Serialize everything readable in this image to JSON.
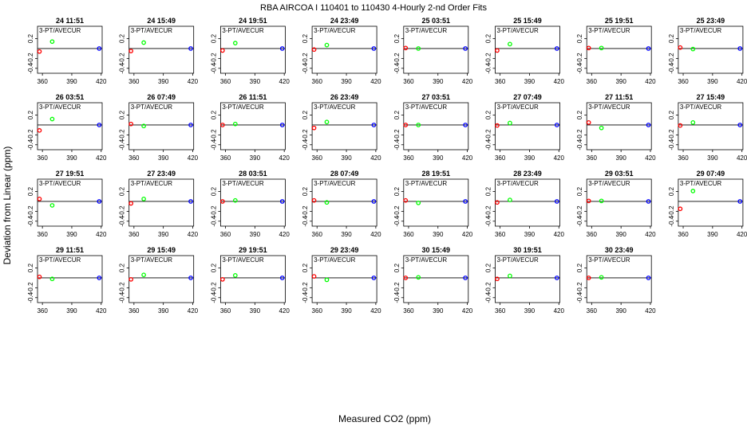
{
  "title": "RBA   AIRCOA I   110401 to 110430   4-Hourly 2-nd Order Fits",
  "xlabel": "Measured CO2 (ppm)",
  "ylabel": "Deviation from Linear (ppm)",
  "colors": {
    "low": "#ff0000",
    "mid": "#00ff00",
    "high": "#0000ff",
    "axis": "#000000"
  },
  "chart_data": {
    "type": "scatter",
    "title": "RBA   AIRCOA I   110401 to 110430   4-Hourly 2-nd Order Fits",
    "xlabel": "Measured CO2 (ppm)",
    "ylabel": "Deviation from Linear (ppm)",
    "xlim": [
      355,
      421
    ],
    "ylim": [
      -0.5,
      0.45
    ],
    "xticks": [
      360,
      390,
      420
    ],
    "yticks": [
      -0.4,
      -0.2,
      0.2
    ],
    "ytick_labels": [
      "-0.4",
      "-0.2",
      "0.2"
    ],
    "xtick_labels": [
      "360",
      "390",
      "420"
    ],
    "grid": false,
    "panels": [
      {
        "label": "24 11:51",
        "subtitle": "3-PT/AVECUR",
        "x": [
          357,
          370,
          418
        ],
        "y": [
          -0.06,
          0.14,
          0.0
        ]
      },
      {
        "label": "24 15:49",
        "subtitle": "3-PT/AVECUR",
        "x": [
          357,
          370,
          418
        ],
        "y": [
          -0.05,
          0.12,
          0.0
        ]
      },
      {
        "label": "24 19:51",
        "subtitle": "3-PT/AVECUR",
        "x": [
          357,
          370,
          418
        ],
        "y": [
          -0.04,
          0.11,
          0.0
        ]
      },
      {
        "label": "24 23:49",
        "subtitle": "3-PT/AVECUR",
        "x": [
          357,
          370,
          418
        ],
        "y": [
          -0.02,
          0.07,
          0.0
        ]
      },
      {
        "label": "25 03:51",
        "subtitle": "3-PT/AVECUR",
        "x": [
          357,
          370,
          418
        ],
        "y": [
          0.01,
          0.0,
          0.0
        ]
      },
      {
        "label": "25 15:49",
        "subtitle": "3-PT/AVECUR",
        "x": [
          357,
          370,
          418
        ],
        "y": [
          -0.04,
          0.09,
          0.0
        ]
      },
      {
        "label": "25 19:51",
        "subtitle": "3-PT/AVECUR",
        "x": [
          357,
          370,
          418
        ],
        "y": [
          0.01,
          0.01,
          0.0
        ]
      },
      {
        "label": "25 23:49",
        "subtitle": "3-PT/AVECUR",
        "x": [
          357,
          370,
          418
        ],
        "y": [
          0.02,
          -0.01,
          0.0
        ]
      },
      {
        "label": "26 03:51",
        "subtitle": "3-PT/AVECUR",
        "x": [
          357,
          370,
          418
        ],
        "y": [
          -0.11,
          0.12,
          0.0
        ]
      },
      {
        "label": "26 07:49",
        "subtitle": "3-PT/AVECUR",
        "x": [
          357,
          370,
          418
        ],
        "y": [
          0.02,
          -0.02,
          0.0
        ]
      },
      {
        "label": "26 11:51",
        "subtitle": "3-PT/AVECUR",
        "x": [
          357,
          370,
          418
        ],
        "y": [
          0.0,
          0.02,
          0.0
        ]
      },
      {
        "label": "26 23:49",
        "subtitle": "3-PT/AVECUR",
        "x": [
          357,
          370,
          418
        ],
        "y": [
          -0.06,
          0.06,
          0.0
        ]
      },
      {
        "label": "27 03:51",
        "subtitle": "3-PT/AVECUR",
        "x": [
          357,
          370,
          418
        ],
        "y": [
          0.0,
          0.0,
          0.0
        ]
      },
      {
        "label": "27 07:49",
        "subtitle": "3-PT/AVECUR",
        "x": [
          357,
          370,
          418
        ],
        "y": [
          -0.01,
          0.04,
          0.0
        ]
      },
      {
        "label": "27 11:51",
        "subtitle": "3-PT/AVECUR",
        "x": [
          357,
          370,
          418
        ],
        "y": [
          0.05,
          -0.06,
          0.0
        ]
      },
      {
        "label": "27 15:49",
        "subtitle": "3-PT/AVECUR",
        "x": [
          357,
          370,
          418
        ],
        "y": [
          -0.01,
          0.05,
          0.0
        ]
      },
      {
        "label": "27 19:51",
        "subtitle": "3-PT/AVECUR",
        "x": [
          357,
          370,
          418
        ],
        "y": [
          0.05,
          -0.08,
          0.0
        ]
      },
      {
        "label": "27 23:49",
        "subtitle": "3-PT/AVECUR",
        "x": [
          357,
          370,
          418
        ],
        "y": [
          -0.04,
          0.05,
          0.0
        ]
      },
      {
        "label": "28 03:51",
        "subtitle": "3-PT/AVECUR",
        "x": [
          357,
          370,
          418
        ],
        "y": [
          0.0,
          0.02,
          0.0
        ]
      },
      {
        "label": "28 07:49",
        "subtitle": "3-PT/AVECUR",
        "x": [
          357,
          370,
          418
        ],
        "y": [
          0.02,
          -0.02,
          0.0
        ]
      },
      {
        "label": "28 19:51",
        "subtitle": "3-PT/AVECUR",
        "x": [
          357,
          370,
          418
        ],
        "y": [
          0.02,
          -0.03,
          0.0
        ]
      },
      {
        "label": "28 23:49",
        "subtitle": "3-PT/AVECUR",
        "x": [
          357,
          370,
          418
        ],
        "y": [
          -0.02,
          0.03,
          0.0
        ]
      },
      {
        "label": "29 03:51",
        "subtitle": "3-PT/AVECUR",
        "x": [
          357,
          370,
          418
        ],
        "y": [
          0.01,
          0.01,
          0.0
        ]
      },
      {
        "label": "29 07:49",
        "subtitle": "3-PT/AVECUR",
        "x": [
          357,
          370,
          418
        ],
        "y": [
          -0.15,
          0.21,
          0.0
        ]
      },
      {
        "label": "29 11:51",
        "subtitle": "3-PT/AVECUR",
        "x": [
          357,
          370,
          418
        ],
        "y": [
          0.02,
          -0.02,
          0.0
        ]
      },
      {
        "label": "29 15:49",
        "subtitle": "3-PT/AVECUR",
        "x": [
          357,
          370,
          418
        ],
        "y": [
          -0.03,
          0.06,
          0.0
        ]
      },
      {
        "label": "29 19:51",
        "subtitle": "3-PT/AVECUR",
        "x": [
          357,
          370,
          418
        ],
        "y": [
          -0.03,
          0.05,
          0.0
        ]
      },
      {
        "label": "29 23:49",
        "subtitle": "3-PT/AVECUR",
        "x": [
          357,
          370,
          418
        ],
        "y": [
          0.03,
          -0.04,
          0.0
        ]
      },
      {
        "label": "30 15:49",
        "subtitle": "3-PT/AVECUR",
        "x": [
          357,
          370,
          418
        ],
        "y": [
          0.0,
          0.01,
          0.0
        ]
      },
      {
        "label": "30 19:51",
        "subtitle": "3-PT/AVECUR",
        "x": [
          357,
          370,
          418
        ],
        "y": [
          -0.02,
          0.04,
          0.0
        ]
      },
      {
        "label": "30 23:49",
        "subtitle": "3-PT/AVECUR",
        "x": [
          357,
          370,
          418
        ],
        "y": [
          0.0,
          0.01,
          0.0
        ]
      }
    ]
  }
}
